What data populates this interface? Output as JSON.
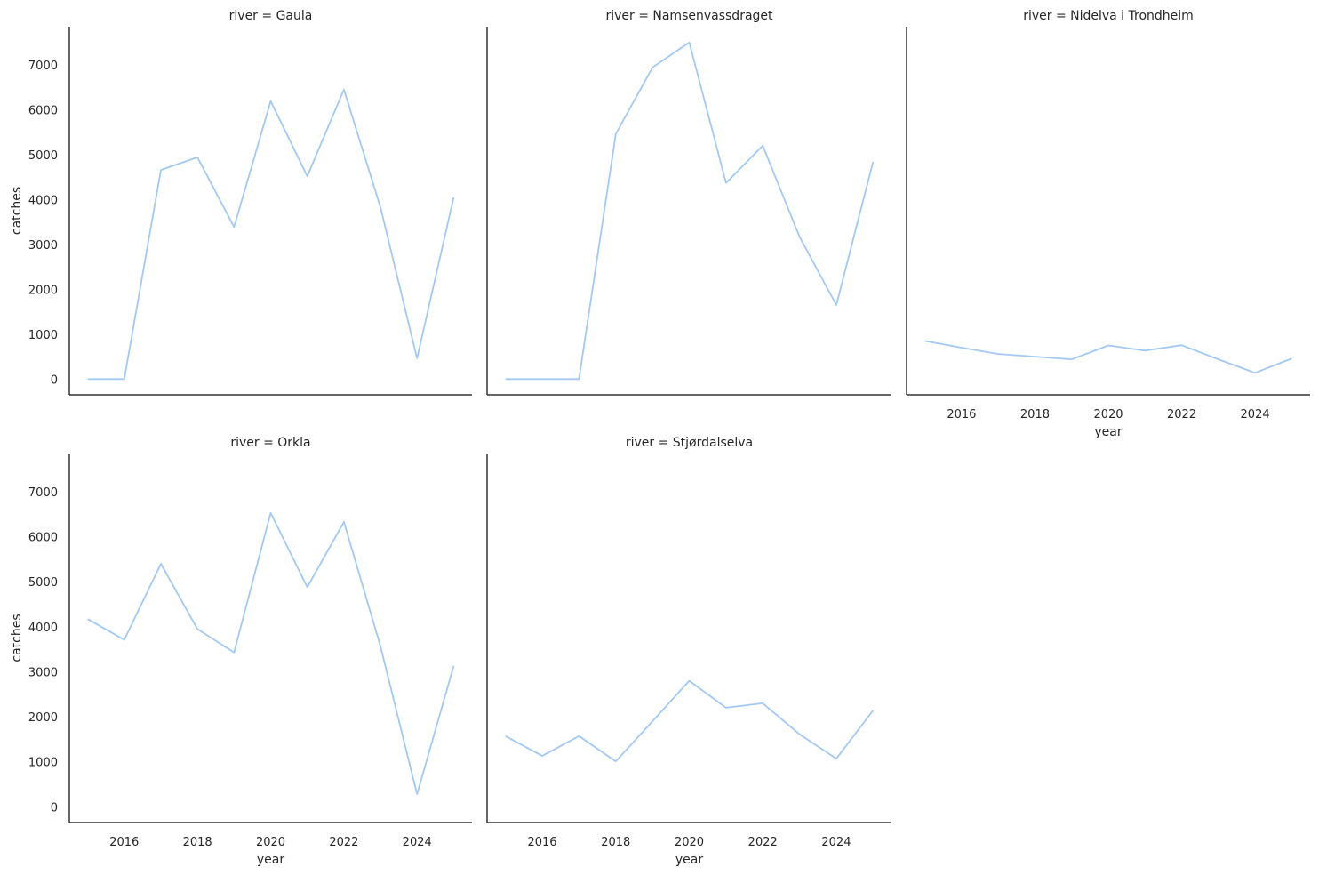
{
  "chart_data": {
    "type": "line",
    "facet_variable": "river",
    "xlabel": "year",
    "ylabel": "catches",
    "x_ticks": [
      2016,
      2018,
      2020,
      2022,
      2024
    ],
    "y_ticks": [
      0,
      1000,
      2000,
      3000,
      4000,
      5000,
      6000,
      7000
    ],
    "xlim": [
      2014.5,
      2025.5
    ],
    "ylim": [
      -350,
      7850
    ],
    "grid": false,
    "line_color": "#a1c9f4",
    "x": [
      2015,
      2016,
      2017,
      2018,
      2019,
      2020,
      2021,
      2022,
      2023,
      2024,
      2025
    ],
    "panels": [
      {
        "title": "river = Gaula",
        "values": [
          0,
          0,
          4660,
          4940,
          3390,
          6190,
          4520,
          6450,
          3830,
          460,
          4050
        ]
      },
      {
        "title": "river = Namsenvassdraget",
        "values": [
          0,
          0,
          0,
          5460,
          6940,
          7500,
          4370,
          5200,
          3170,
          1650,
          4840
        ]
      },
      {
        "title": "river = Nidelva i Trondheim",
        "values": [
          850,
          700,
          560,
          500,
          440,
          750,
          635,
          755,
          440,
          140,
          460
        ]
      },
      {
        "title": "river = Orkla",
        "values": [
          4170,
          3710,
          5400,
          3950,
          3430,
          6530,
          4880,
          6330,
          3570,
          280,
          3130
        ]
      },
      {
        "title": "river = Stjørdalselva",
        "values": [
          1570,
          1130,
          1570,
          1010,
          1900,
          2800,
          2200,
          2300,
          1610,
          1070,
          2140
        ]
      }
    ]
  }
}
